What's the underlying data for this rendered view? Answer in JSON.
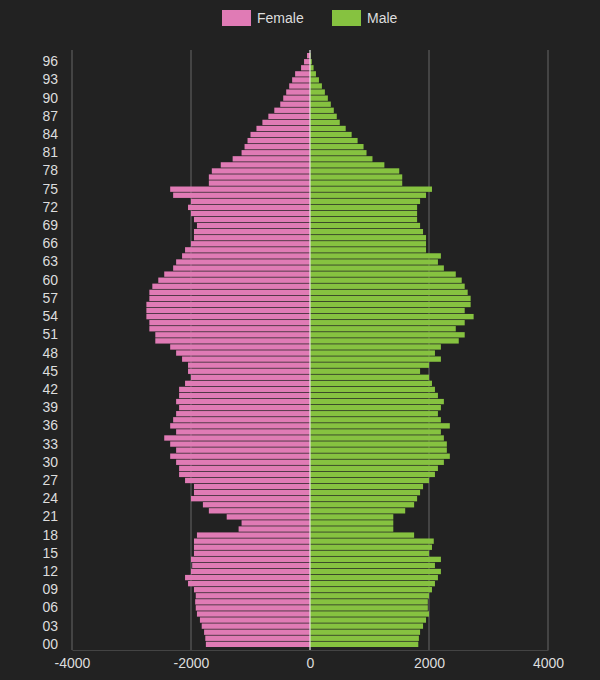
{
  "chart_data": {
    "type": "bar",
    "orientation": "horizontal",
    "grid": true,
    "legend": "top",
    "categories": [
      "00",
      null,
      null,
      "03",
      null,
      null,
      "06",
      null,
      null,
      "09",
      null,
      null,
      "12",
      null,
      null,
      "15",
      null,
      null,
      "18",
      null,
      null,
      "21",
      null,
      null,
      "24",
      null,
      null,
      "27",
      null,
      null,
      "30",
      null,
      null,
      "33",
      null,
      null,
      "36",
      null,
      null,
      "39",
      null,
      null,
      "42",
      null,
      null,
      "45",
      null,
      null,
      "48",
      null,
      null,
      "51",
      null,
      null,
      "54",
      null,
      null,
      "57",
      null,
      null,
      "60",
      null,
      null,
      "63",
      null,
      null,
      "66",
      null,
      null,
      "69",
      null,
      null,
      "72",
      null,
      null,
      "75",
      null,
      null,
      "78",
      null,
      null,
      "81",
      null,
      null,
      "84",
      null,
      null,
      "87",
      null,
      null,
      "90",
      null,
      null,
      "93",
      null,
      null,
      "96",
      null
    ],
    "xlim": [
      -4000,
      4000
    ],
    "xticks": [
      -4000,
      -2000,
      0,
      2000,
      4000
    ],
    "series": [
      {
        "name": "Female",
        "color": "#e07bb5",
        "values": [
          -1750,
          -1760,
          -1780,
          -1820,
          -1850,
          -1900,
          -1920,
          -1930,
          -1920,
          -1950,
          -2050,
          -2100,
          -2000,
          -1980,
          -2000,
          -1950,
          -1950,
          -1950,
          -1900,
          -1200,
          -1150,
          -1400,
          -1700,
          -1800,
          -2000,
          -1950,
          -1950,
          -2100,
          -2200,
          -2200,
          -2250,
          -2350,
          -2250,
          -2350,
          -2450,
          -2250,
          -2350,
          -2300,
          -2250,
          -2200,
          -2250,
          -2200,
          -2200,
          -2100,
          -2000,
          -2050,
          -2050,
          -2150,
          -2250,
          -2350,
          -2600,
          -2600,
          -2700,
          -2700,
          -2750,
          -2750,
          -2750,
          -2700,
          -2700,
          -2650,
          -2550,
          -2450,
          -2300,
          -2250,
          -2150,
          -2100,
          -2000,
          -1950,
          -1950,
          -1900,
          -1950,
          -2000,
          -2050,
          -2000,
          -2300,
          -2350,
          -1700,
          -1700,
          -1650,
          -1500,
          -1300,
          -1150,
          -1100,
          -1050,
          -1000,
          -900,
          -800,
          -700,
          -600,
          -500,
          -450,
          -400,
          -350,
          -300,
          -250,
          -150,
          -100,
          -50
        ]
      },
      {
        "name": "Male",
        "color": "#86c240",
        "values": [
          1820,
          1830,
          1850,
          1900,
          1950,
          2000,
          1980,
          1980,
          2000,
          2050,
          2100,
          2150,
          2200,
          2100,
          2200,
          2000,
          2050,
          2080,
          1750,
          1400,
          1400,
          1400,
          1600,
          1750,
          1800,
          1850,
          1900,
          2000,
          2100,
          2150,
          2250,
          2350,
          2300,
          2300,
          2250,
          2200,
          2350,
          2200,
          2150,
          2200,
          2250,
          2150,
          2100,
          2050,
          2000,
          1850,
          2000,
          2200,
          2100,
          2200,
          2500,
          2600,
          2450,
          2600,
          2750,
          2600,
          2700,
          2700,
          2650,
          2600,
          2550,
          2450,
          2250,
          2150,
          2200,
          1950,
          1950,
          1950,
          1900,
          1850,
          1800,
          1800,
          1800,
          1850,
          1950,
          2050,
          1550,
          1550,
          1500,
          1250,
          1050,
          950,
          900,
          800,
          700,
          600,
          500,
          450,
          400,
          350,
          300,
          250,
          200,
          150,
          100,
          60,
          30,
          10
        ]
      }
    ]
  }
}
